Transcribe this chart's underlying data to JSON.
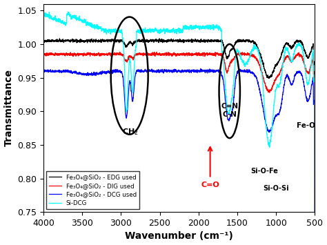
{
  "xlabel": "Wavenumber (cm⁻¹)",
  "ylabel": "Transmittance",
  "xlim": [
    4000,
    500
  ],
  "ylim": [
    0.75,
    1.06
  ],
  "yticks": [
    0.75,
    0.8,
    0.85,
    0.9,
    0.95,
    1.0,
    1.05
  ],
  "xticks": [
    4000,
    3500,
    3000,
    2500,
    2000,
    1500,
    1000,
    500
  ],
  "legend_labels": [
    "Fe₃O₄@SiO₂ - EDG used",
    "Fe₃O₄@SiO₂ - DIG used",
    "Fe₃O₄@SiO₂ - DCG used",
    "Si-DCG"
  ],
  "colors": [
    "black",
    "red",
    "blue",
    "cyan"
  ]
}
